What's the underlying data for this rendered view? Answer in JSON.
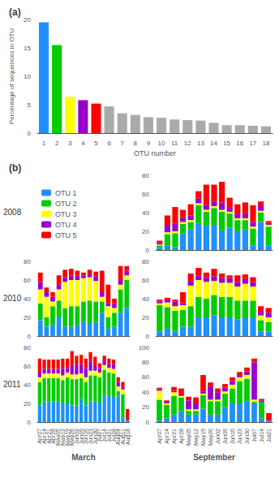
{
  "chart_data": [
    {
      "type": "bar",
      "title": "(a)",
      "xlabel": "OTU number",
      "ylabel": "Percentage of sequences in OTU",
      "categories": [
        "1",
        "2",
        "3",
        "4",
        "5",
        "6",
        "7",
        "8",
        "9",
        "10",
        "11",
        "12",
        "13",
        "14",
        "15",
        "16",
        "17",
        "18"
      ],
      "values": [
        19.5,
        15.5,
        6.4,
        5.8,
        5.2,
        4.7,
        3.5,
        3.2,
        2.8,
        2.7,
        2.4,
        2.3,
        2.2,
        1.8,
        1.4,
        1.4,
        1.3,
        1.2
      ],
      "colors": [
        "#1E90FF",
        "#00CC00",
        "#FFFF00",
        "#9900CC",
        "#FF0000",
        "#AAAAAA",
        "#AAAAAA",
        "#AAAAAA",
        "#AAAAAA",
        "#AAAAAA",
        "#AAAAAA",
        "#AAAAAA",
        "#AAAAAA",
        "#AAAAAA",
        "#AAAAAA",
        "#AAAAAA",
        "#AAAAAA",
        "#AAAAAA"
      ],
      "ylim": [
        0,
        20
      ],
      "yticks": [
        0,
        5,
        10,
        15,
        20
      ],
      "grid": false
    },
    {
      "type": "bar",
      "title": "(b)",
      "annotations": [
        "2008"
      ],
      "stacked": true,
      "legend": "left",
      "grid": false,
      "categories": [
        null,
        null,
        null,
        null,
        null,
        null,
        null,
        null,
        null,
        null,
        null,
        null,
        null,
        null,
        null
      ],
      "series": [
        {
          "name": "OTU 1",
          "color": "#1E90FF",
          "values": [
            2,
            5,
            3,
            18,
            22,
            28,
            26,
            27,
            21,
            24,
            20,
            22,
            5,
            30,
            5
          ]
        },
        {
          "name": "OTU 2",
          "color": "#00CC00",
          "values": [
            3,
            12,
            15,
            10,
            8,
            20,
            15,
            18,
            20,
            15,
            12,
            10,
            18,
            10,
            20
          ]
        },
        {
          "name": "OTU 3",
          "color": "#FFFF00",
          "values": [
            1,
            2,
            2,
            2,
            2,
            2,
            2,
            2,
            2,
            2,
            2,
            2,
            2,
            2,
            2
          ]
        },
        {
          "name": "OTU 4",
          "color": "#9900CC",
          "values": [
            2,
            8,
            8,
            5,
            5,
            5,
            5,
            5,
            8,
            5,
            5,
            5,
            5,
            5,
            2
          ]
        },
        {
          "name": "OTU 5",
          "color": "#FF0000",
          "values": [
            2,
            10,
            18,
            8,
            12,
            8,
            22,
            18,
            22,
            10,
            10,
            12,
            18,
            5,
            2
          ]
        }
      ],
      "ylim": [
        0,
        80
      ],
      "yticks": [
        0,
        20,
        40,
        60,
        80
      ]
    },
    {
      "type": "bar",
      "annotations": [
        "2010"
      ],
      "stacked": true,
      "grid": false,
      "categories": [
        null,
        null,
        null,
        null,
        null,
        null,
        null,
        null,
        null,
        null,
        null,
        null,
        null,
        null,
        null
      ],
      "series": [
        {
          "name": "OTU 1",
          "color": "#1E90FF",
          "values": [
            17,
            10,
            12,
            20,
            10,
            10,
            12,
            15,
            13,
            15,
            25,
            8,
            10,
            25,
            30
          ]
        },
        {
          "name": "OTU 2",
          "color": "#00CC00",
          "values": [
            18,
            10,
            20,
            18,
            20,
            22,
            20,
            22,
            25,
            22,
            12,
            12,
            15,
            25,
            30
          ]
        },
        {
          "name": "OTU 3",
          "color": "#FFFF00",
          "values": [
            15,
            22,
            5,
            12,
            28,
            28,
            28,
            25,
            25,
            22,
            5,
            12,
            5,
            5,
            5
          ]
        },
        {
          "name": "OTU 4",
          "color": "#9900CC",
          "values": [
            8,
            5,
            5,
            5,
            5,
            5,
            5,
            3,
            3,
            5,
            5,
            3,
            5,
            5,
            5
          ]
        },
        {
          "name": "OTU 5",
          "color": "#FF0000",
          "values": [
            10,
            5,
            5,
            10,
            8,
            7,
            5,
            3,
            5,
            5,
            23,
            20,
            5,
            15,
            5
          ]
        }
      ],
      "ylim": [
        0,
        80
      ],
      "yticks": [
        0,
        20,
        40,
        60,
        80
      ]
    },
    {
      "type": "bar",
      "stacked": true,
      "grid": false,
      "categories": [
        null,
        null,
        null,
        null,
        null,
        null,
        null,
        null,
        null,
        null,
        null,
        null,
        null,
        null,
        null
      ],
      "series": [
        {
          "name": "OTU 1",
          "color": "#1E90FF",
          "values": [
            5,
            8,
            5,
            10,
            10,
            20,
            20,
            22,
            20,
            20,
            18,
            20,
            20,
            5,
            5
          ]
        },
        {
          "name": "OTU 2",
          "color": "#00CC00",
          "values": [
            28,
            23,
            22,
            18,
            22,
            22,
            20,
            22,
            22,
            22,
            20,
            18,
            18,
            12,
            10
          ]
        },
        {
          "name": "OTU 3",
          "color": "#FFFF00",
          "values": [
            2,
            5,
            5,
            5,
            22,
            18,
            18,
            15,
            15,
            15,
            15,
            18,
            15,
            5,
            5
          ]
        },
        {
          "name": "OTU 4",
          "color": "#9900CC",
          "values": [
            2,
            3,
            5,
            2,
            5,
            5,
            5,
            5,
            5,
            5,
            5,
            5,
            5,
            5,
            5
          ]
        },
        {
          "name": "OTU 5",
          "color": "#FF0000",
          "values": [
            2,
            2,
            2,
            12,
            8,
            8,
            5,
            8,
            5,
            3,
            7,
            5,
            5,
            5,
            5
          ]
        }
      ],
      "ylim": [
        0,
        80
      ],
      "yticks": [
        0,
        20,
        40,
        60,
        80
      ]
    },
    {
      "type": "bar",
      "annotations": [
        "2011"
      ],
      "xlabel": "March",
      "stacked": true,
      "grid": false,
      "categories": [
        "Apr07",
        "Apr14",
        "Apr21",
        "Apr28",
        "May05",
        "May12",
        "May19",
        "May26",
        "Jun02",
        "Jun09",
        "Jun16",
        "Jun23",
        "Jun30",
        "Jul07",
        "Jul14",
        "Jul21",
        "Jul28",
        "Aug04",
        "Aug11",
        "Aug18"
      ],
      "series": [
        {
          "name": "OTU 1",
          "color": "#1E90FF",
          "values": [
            18,
            22,
            22,
            22,
            22,
            20,
            20,
            18,
            18,
            25,
            18,
            22,
            22,
            20,
            28,
            28,
            27,
            28,
            5,
            2
          ]
        },
        {
          "name": "OTU 2",
          "color": "#00CC00",
          "values": [
            25,
            25,
            25,
            25,
            25,
            25,
            28,
            28,
            28,
            22,
            25,
            28,
            28,
            28,
            28,
            25,
            25,
            5,
            25,
            0
          ]
        },
        {
          "name": "OTU 3",
          "color": "#FFFF00",
          "values": [
            5,
            5,
            5,
            5,
            5,
            5,
            5,
            5,
            5,
            5,
            5,
            5,
            5,
            5,
            5,
            5,
            5,
            5,
            5,
            0
          ]
        },
        {
          "name": "OTU 4",
          "color": "#9900CC",
          "values": [
            5,
            5,
            5,
            5,
            5,
            8,
            5,
            10,
            10,
            10,
            10,
            10,
            5,
            5,
            5,
            5,
            5,
            5,
            3,
            0
          ]
        },
        {
          "name": "OTU 5",
          "color": "#FF0000",
          "values": [
            15,
            10,
            10,
            10,
            10,
            10,
            10,
            15,
            10,
            10,
            10,
            10,
            10,
            5,
            5,
            5,
            5,
            5,
            5,
            12
          ]
        }
      ],
      "ylim": [
        0,
        80
      ],
      "yticks": [
        0,
        20,
        40,
        60,
        80
      ]
    },
    {
      "type": "bar",
      "xlabel": "September",
      "stacked": true,
      "grid": false,
      "categories": [
        "Apr07",
        "Apr14",
        "Apr21",
        "Apr28",
        "May05",
        "May12",
        "May19",
        "May26",
        "Jun02",
        "Jun09",
        "Jun16",
        "Jun23",
        "Jun30",
        "Jul07",
        "Jul14",
        "Jul21"
      ],
      "series": [
        {
          "name": "OTU 1",
          "color": "#1E90FF",
          "values": [
            2,
            5,
            10,
            15,
            10,
            10,
            18,
            10,
            10,
            20,
            25,
            25,
            28,
            25,
            5,
            2
          ]
        },
        {
          "name": "OTU 2",
          "color": "#00CC00",
          "values": [
            28,
            18,
            25,
            18,
            5,
            5,
            18,
            18,
            18,
            18,
            20,
            30,
            30,
            2,
            22,
            0
          ]
        },
        {
          "name": "OTU 3",
          "color": "#FFFF00",
          "values": [
            12,
            2,
            5,
            2,
            2,
            2,
            2,
            2,
            2,
            3,
            5,
            5,
            5,
            3,
            0,
            0
          ]
        },
        {
          "name": "OTU 4",
          "color": "#9900CC",
          "values": [
            2,
            2,
            2,
            2,
            12,
            8,
            3,
            18,
            10,
            5,
            5,
            2,
            5,
            50,
            2,
            0
          ]
        },
        {
          "name": "OTU 5",
          "color": "#FF0000",
          "values": [
            2,
            2,
            5,
            8,
            5,
            8,
            22,
            5,
            5,
            5,
            5,
            5,
            5,
            5,
            2,
            10
          ]
        }
      ],
      "ylim": [
        0,
        100
      ],
      "yticks": [
        0,
        20,
        40,
        60,
        80,
        100
      ]
    }
  ]
}
